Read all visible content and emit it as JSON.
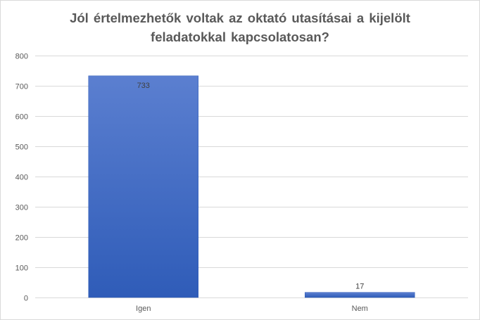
{
  "chart_data": {
    "type": "bar",
    "title_lines": [
      "Jól értelmezhetők voltak az oktató utasításai  a kijelölt",
      "feladatokkal kapcsolatosan?"
    ],
    "categories": [
      "Igen",
      "Nem"
    ],
    "values": [
      733,
      17
    ],
    "data_labels": [
      "733",
      "17"
    ],
    "ylim": [
      0,
      800
    ],
    "yticks": [
      0,
      100,
      200,
      300,
      400,
      500,
      600,
      700,
      800
    ],
    "grid": true,
    "legend": "none",
    "colors": {
      "bar_top": "#5b7fd0",
      "bar_bottom": "#2f5cb8",
      "grid": "#d9d9d9",
      "axis_text": "#595959"
    }
  }
}
